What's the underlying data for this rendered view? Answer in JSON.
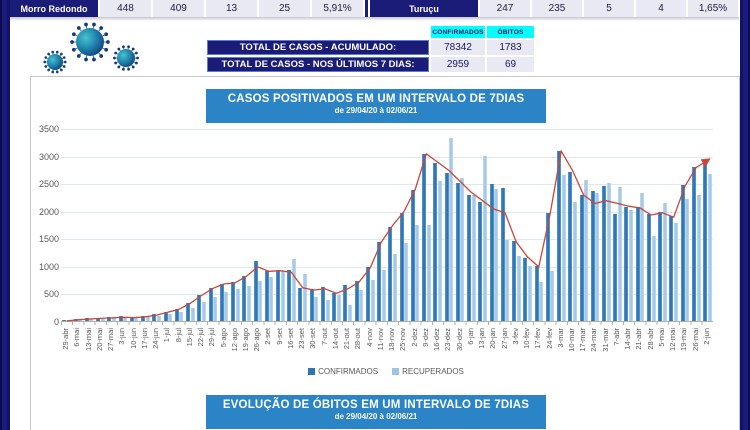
{
  "top_strip": {
    "left": {
      "label": "Morro Redondo",
      "values": [
        "448",
        "409",
        "13",
        "25",
        "5,91%"
      ]
    },
    "right": {
      "label": "Turuçu",
      "values": [
        "247",
        "235",
        "5",
        "4",
        "1,65%"
      ]
    }
  },
  "totals": {
    "col_headers": [
      "CONFIRMADOS",
      "ÓBITOS"
    ],
    "rows": [
      {
        "label": "TOTAL DE CASOS  - ACUMULADO:",
        "confirmados": "78342",
        "obitos": "1783"
      },
      {
        "label": "TOTAL DE CASOS  - NOS ÚLTIMOS 7 DIAS:",
        "confirmados": "2959",
        "obitos": "69"
      }
    ]
  },
  "chart_title": {
    "line1": "CASOS POSITIVADOS EM UM INTERVALO DE 7DIAS",
    "line2": "de 29/04/20 à 02/06/21"
  },
  "bottom_title": {
    "line1": "EVOLUÇÃO DE ÓBITOS EM UM INTERVALO DE 7DIAS",
    "line2": "de 29/04/20 à 02/06/21"
  },
  "colors": {
    "navy": "#1b1b78",
    "cyan_header": "#00ffff",
    "title_blue": "#2b84c6",
    "bar_confirmados": "#2e75b6",
    "bar_recuperados": "#9dc3e6",
    "trend_red": "#c9473a"
  },
  "chart_data": {
    "type": "bar",
    "title": "CASOS POSITIVADOS EM UM INTERVALO DE 7DIAS",
    "subtitle": "de 29/04/20 à 02/06/21",
    "xlabel": "",
    "ylabel": "",
    "ylim": [
      0,
      3500
    ],
    "yticks": [
      0,
      500,
      1000,
      1500,
      2000,
      2500,
      3000,
      3500
    ],
    "grid": true,
    "legend_position": "bottom",
    "legend": [
      "CONFIRMADOS",
      "RECUPERADOS"
    ],
    "categories": [
      "29-abr",
      "6-mai",
      "13-mai",
      "20-mai",
      "27-mai",
      "3-jun",
      "10-jun",
      "17-jun",
      "24-jun",
      "1-jul",
      "8-jul",
      "15-jul",
      "22-jul",
      "29-jul",
      "5-ago",
      "12-ago",
      "19-ago",
      "26-ago",
      "2-set",
      "9-set",
      "16-set",
      "23-set",
      "30-set",
      "7-out",
      "14-out",
      "21-out",
      "28-out",
      "4-nov",
      "11-nov",
      "18-nov",
      "25-nov",
      "2-dez",
      "9-dez",
      "16-dez",
      "23-dez",
      "30-dez",
      "6-jan",
      "13-jan",
      "20-jan",
      "27-jan",
      "3-fev",
      "10-fev",
      "17-fev",
      "24-fev",
      "3-mar",
      "10-mar",
      "17-mar",
      "24-mar",
      "31-mar",
      "7-abr",
      "14-abr",
      "21-abr",
      "28-abr",
      "5-mai",
      "12-mai",
      "19-mai",
      "26-mai",
      "2-jun"
    ],
    "series": [
      {
        "name": "CONFIRMADOS",
        "type": "bar",
        "color": "#2e75b6",
        "values": [
          20,
          35,
          50,
          60,
          70,
          85,
          75,
          95,
          120,
          170,
          220,
          330,
          470,
          600,
          680,
          700,
          820,
          1090,
          910,
          930,
          930,
          600,
          575,
          610,
          500,
          655,
          730,
          975,
          1440,
          1700,
          1950,
          2370,
          3030,
          2870,
          2690,
          2510,
          2280,
          2150,
          2490,
          2415,
          1445,
          1150,
          1000,
          1950,
          3080,
          2700,
          2280,
          2350,
          2450,
          1940,
          2070,
          2070,
          1940,
          1980,
          1900,
          2460,
          2800,
          2915
        ]
      },
      {
        "name": "RECUPERADOS",
        "type": "bar",
        "color": "#9dc3e6",
        "values": [
          5,
          15,
          30,
          40,
          50,
          60,
          65,
          75,
          90,
          120,
          160,
          240,
          350,
          430,
          520,
          580,
          640,
          730,
          800,
          900,
          1120,
          855,
          440,
          380,
          470,
          290,
          560,
          745,
          925,
          1210,
          1415,
          1740,
          1740,
          2540,
          3320,
          2600,
          2280,
          3000,
          2400,
          1475,
          1180,
          1000,
          700,
          910,
          2650,
          2160,
          2550,
          2330,
          2500,
          2430,
          2020,
          2320,
          1535,
          2140,
          1775,
          2220,
          2280,
          2665
        ]
      },
      {
        "name": "TENDÊNCIA",
        "type": "line",
        "color": "#c9473a",
        "values": [
          20,
          40,
          55,
          65,
          75,
          85,
          80,
          95,
          125,
          175,
          230,
          340,
          480,
          610,
          690,
          710,
          830,
          1000,
          920,
          930,
          900,
          620,
          580,
          600,
          520,
          600,
          720,
          980,
          1450,
          1750,
          2000,
          2400,
          3050,
          2900,
          2750,
          2550,
          2350,
          2200,
          2050,
          1980,
          1450,
          1180,
          1000,
          1950,
          3100,
          2750,
          2300,
          2150,
          2200,
          2150,
          2100,
          2070,
          1940,
          1980,
          1900,
          2460,
          2800,
          2930
        ]
      }
    ]
  }
}
